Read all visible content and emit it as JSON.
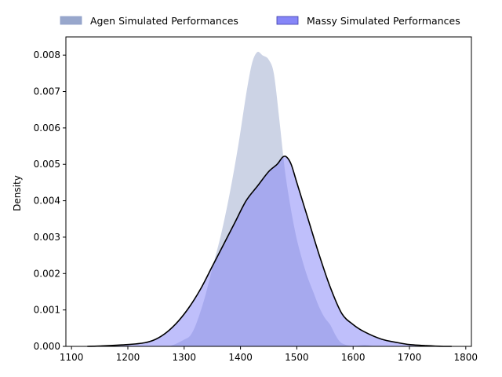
{
  "chart_data": {
    "type": "area",
    "title": "",
    "xlabel": "",
    "ylabel": "Density",
    "xlim": [
      1090,
      1810
    ],
    "ylim": [
      0,
      0.0085
    ],
    "xticks": [
      1100,
      1200,
      1300,
      1400,
      1500,
      1600,
      1700,
      1800
    ],
    "yticks": [
      0.0,
      0.001,
      0.002,
      0.003,
      0.004,
      0.005,
      0.006,
      0.007,
      0.008
    ],
    "ytick_labels": [
      "0.000",
      "0.001",
      "0.002",
      "0.003",
      "0.004",
      "0.005",
      "0.006",
      "0.007",
      "0.008"
    ],
    "grid": false,
    "legend_position": "top-center, above plot",
    "series": [
      {
        "name": "Agen Simulated Performances",
        "fill": "#8d9dc6",
        "fill_opacity": 0.45,
        "edge": "#ffffff",
        "x": [
          1180,
          1260,
          1280,
          1300,
          1310,
          1320,
          1335,
          1350,
          1365,
          1380,
          1395,
          1410,
          1420,
          1430,
          1440,
          1450,
          1460,
          1470,
          1480,
          1490,
          1500,
          1510,
          1520,
          1530,
          1540,
          1550,
          1560,
          1570,
          1580,
          1600,
          1620,
          1650,
          1700
        ],
        "y": [
          0,
          0,
          5e-05,
          0.0002,
          0.0003,
          0.0006,
          0.0013,
          0.0022,
          0.0031,
          0.0042,
          0.0055,
          0.007,
          0.0078,
          0.0081,
          0.008,
          0.0079,
          0.0075,
          0.0062,
          0.0048,
          0.0038,
          0.003,
          0.0024,
          0.0019,
          0.0015,
          0.0011,
          0.0008,
          0.0006,
          0.0003,
          0.0001,
          2e-05,
          5e-05,
          0,
          0
        ]
      },
      {
        "name": "Massy Simulated Performances",
        "fill": "#8080f8",
        "fill_opacity": 0.5,
        "edge": "#000000",
        "x": [
          1128,
          1150,
          1200,
          1230,
          1250,
          1270,
          1290,
          1310,
          1330,
          1350,
          1370,
          1390,
          1410,
          1430,
          1450,
          1465,
          1475,
          1482,
          1490,
          1500,
          1520,
          1540,
          1560,
          1580,
          1600,
          1620,
          1650,
          1680,
          1700,
          1730,
          1760,
          1775
        ],
        "y": [
          0,
          1e-05,
          5e-05,
          0.0001,
          0.0002,
          0.0004,
          0.0007,
          0.0011,
          0.0016,
          0.0022,
          0.0028,
          0.0034,
          0.004,
          0.0044,
          0.0048,
          0.005,
          0.0052,
          0.0052,
          0.005,
          0.0045,
          0.0035,
          0.0025,
          0.0016,
          0.0009,
          0.0006,
          0.0004,
          0.0002,
          0.0001,
          5e-05,
          2e-05,
          0,
          0
        ]
      }
    ]
  }
}
